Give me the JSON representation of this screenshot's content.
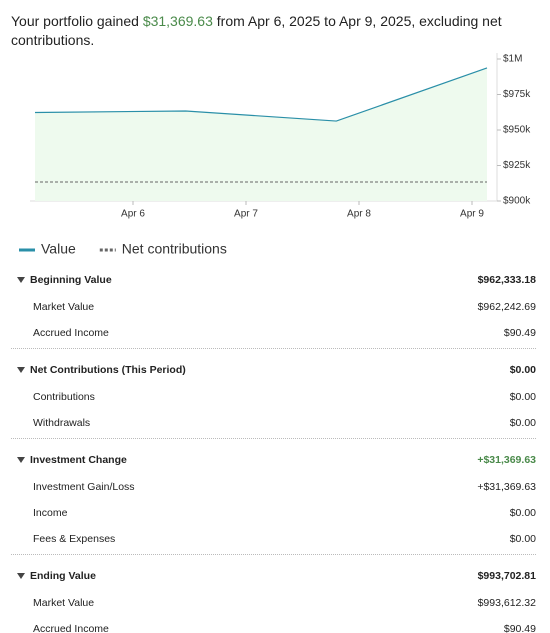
{
  "header": {
    "prefix": "Your portfolio gained",
    "amount": "$31,369.63",
    "suffix": "from Apr 6, 2025 to Apr 9, 2025, excluding net contributions."
  },
  "chart_data": {
    "type": "line",
    "categories": [
      "Apr 6",
      "Apr 7",
      "Apr 8",
      "Apr 9"
    ],
    "series": [
      {
        "name": "Value",
        "color": "#2a8fa8",
        "values": [
          962333,
          963400,
          956300,
          993703
        ]
      },
      {
        "name": "Net contributions",
        "color": "#666666",
        "values": [
          913400,
          913400,
          913400,
          913400
        ]
      }
    ],
    "ylim": [
      900000,
      1000000
    ],
    "yticks": [
      {
        "value": 900000,
        "label": "$900k"
      },
      {
        "value": 925000,
        "label": "$925k"
      },
      {
        "value": 950000,
        "label": "$950k"
      },
      {
        "value": 975000,
        "label": "$975k"
      },
      {
        "value": 1000000,
        "label": "$1M"
      }
    ],
    "area_color": "#eefaee"
  },
  "sections": [
    {
      "title": "Beginning Value",
      "total": "$962,333.18",
      "rows": [
        [
          "Market Value",
          "$962,242.69"
        ],
        [
          "Accrued Income",
          "$90.49"
        ]
      ]
    },
    {
      "title": "Net Contributions (This Period)",
      "total": "$0.00",
      "rows": [
        [
          "Contributions",
          "$0.00"
        ],
        [
          "Withdrawals",
          "$0.00"
        ]
      ]
    },
    {
      "title": "Investment Change",
      "total": "+$31,369.63",
      "rows": [
        [
          "Investment Gain/Loss",
          "+$31,369.63"
        ],
        [
          "Income",
          "$0.00"
        ],
        [
          "Fees & Expenses",
          "$0.00"
        ]
      ]
    },
    {
      "title": "Ending Value",
      "total": "$993,702.81",
      "rows": [
        [
          "Market Value",
          "$993,612.32"
        ],
        [
          "Accrued Income",
          "$90.49"
        ]
      ]
    }
  ]
}
